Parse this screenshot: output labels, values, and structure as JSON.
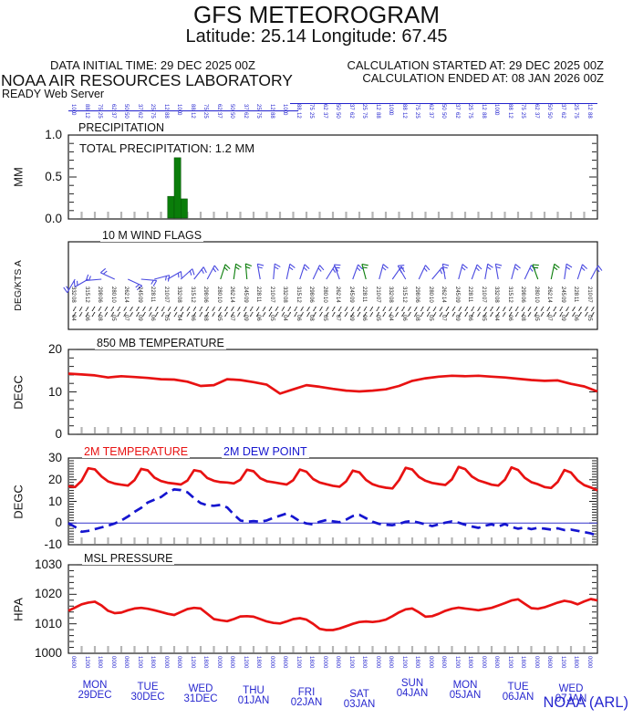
{
  "page": {
    "title": "GFS METEOROGRAM",
    "subtitle": "Latitude: 25.14 Longitude:  67.45",
    "credit": "NOAA (ARL)"
  },
  "header": {
    "data_initial_time": "DATA INITIAL TIME: 29 DEC 2025 00Z",
    "calculation_started": "CALCULATION STARTED AT: 29 DEC 2025 00Z",
    "calculation_ended": "CALCULATION ENDED AT: 08 JAN 2026 00Z",
    "organization": "NOAA AIR RESOURCES LABORATORY",
    "server": "READY Web Server"
  },
  "colors": {
    "red": "#e81212",
    "blue": "#1515cf",
    "barb_blue": "#4a4ae0",
    "green": "#0a7d0a",
    "label_blue": "#2828cf",
    "black": "#1a1a1a",
    "gray_tick": "#b5b5b5"
  },
  "x_axis": {
    "start": "29 DEC 2025 00Z",
    "end": "08 JAN 2026 00Z",
    "hours_total": 240,
    "minor_tick_hours": 6,
    "days": [
      {
        "name": "MON",
        "date": "29DEC"
      },
      {
        "name": "TUE",
        "date": "30DEC"
      },
      {
        "name": "WED",
        "date": "31DEC"
      },
      {
        "name": "THU",
        "date": "01JAN"
      },
      {
        "name": "FRI",
        "date": "02JAN"
      },
      {
        "name": "SAT",
        "date": "03JAN"
      },
      {
        "name": "SUN",
        "date": "04JAN"
      },
      {
        "name": "MON",
        "date": "05JAN"
      },
      {
        "name": "TUE",
        "date": "06JAN"
      },
      {
        "name": "WED",
        "date": "07JAN"
      }
    ]
  },
  "chart_data": [
    {
      "id": "precip",
      "type": "bar",
      "title": "PRECIPITATION",
      "ylabel": "MM",
      "ylim": [
        0,
        1
      ],
      "ytick_values": [
        0,
        0.5,
        1
      ],
      "yticks": [
        "0.0",
        "0.5",
        "1.0"
      ],
      "minor_step": 0.1,
      "annotation": "TOTAL PRECIPITATION:   1.2 MM",
      "total_precip_mm": 1.2,
      "bars": [
        {
          "start_hour": 45,
          "end_hour": 48,
          "mm": 0.27
        },
        {
          "start_hour": 48,
          "end_hour": 51,
          "mm": 0.73
        },
        {
          "start_hour": 51,
          "end_hour": 54,
          "mm": 0.24
        }
      ]
    },
    {
      "id": "wind",
      "type": "wind-barbs",
      "title": "10 M  WIND FLAGS",
      "ylabel": "DEG/KTS A",
      "barbs": {
        "angles": [
          210,
          240,
          265,
          295,
          115,
          95,
          75,
          60,
          48,
          38,
          28,
          18,
          8,
          355,
          350,
          5,
          12,
          18,
          25,
          32,
          340,
          20,
          345,
          15,
          35,
          330,
          25,
          40,
          350,
          15,
          20,
          10,
          350,
          15,
          25,
          340,
          12,
          8,
          18,
          28
        ],
        "colors": [
          "b",
          "b",
          "b",
          "b",
          "b",
          "b",
          "b",
          "b",
          "b",
          "b",
          "b",
          "g",
          "g",
          "g",
          "b",
          "b",
          "b",
          "b",
          "b",
          "b",
          "b",
          "b",
          "g",
          "b",
          "b",
          "b",
          "b",
          "b",
          "b",
          "b",
          "b",
          "b",
          "b",
          "b",
          "b",
          "g",
          "g",
          "b",
          "b",
          "b"
        ]
      }
    },
    {
      "id": "t850",
      "type": "line",
      "title": "850 MB  TEMPERATURE",
      "ylabel": "DEGC",
      "ylim": [
        0,
        20
      ],
      "ytick_values": [
        0,
        10,
        20
      ],
      "yticks": [
        "0",
        "10",
        "20"
      ],
      "minor_step": 2,
      "step_hours": 6,
      "series": [
        {
          "name": "850 MB TEMPERATURE",
          "color": "red",
          "style": "solid",
          "values": [
            14.3,
            14.1,
            13.9,
            13.4,
            13.7,
            13.5,
            13.3,
            13.0,
            12.9,
            12.4,
            11.4,
            11.6,
            13.0,
            12.8,
            12.3,
            11.7,
            9.6,
            10.6,
            11.6,
            11.2,
            10.7,
            10.3,
            10.1,
            10.3,
            10.6,
            11.4,
            12.6,
            13.2,
            13.6,
            13.8,
            13.7,
            13.8,
            13.6,
            13.4,
            13.1,
            12.8,
            12.6,
            12.7,
            11.9,
            11.3,
            10.1
          ]
        }
      ]
    },
    {
      "id": "t2m",
      "type": "line",
      "ylabel": "DEGC",
      "ylim": [
        -10,
        30
      ],
      "ytick_values": [
        -10,
        0,
        10,
        20,
        30
      ],
      "yticks": [
        "-10",
        "0",
        "10",
        "20",
        "30"
      ],
      "minor_step": 1.25,
      "step_hours": 3,
      "zero_line": true,
      "series": [
        {
          "name": "2M TEMPERATURE",
          "color": "red",
          "style": "solid",
          "values": [
            17.0,
            16.6,
            19.5,
            25.3,
            24.8,
            21.5,
            19.2,
            18.2,
            17.7,
            17.3,
            19.8,
            25.0,
            24.3,
            21.0,
            19.4,
            18.6,
            18.2,
            17.8,
            19.6,
            24.4,
            23.8,
            20.8,
            19.5,
            18.9,
            18.7,
            18.3,
            20.0,
            24.6,
            23.9,
            20.7,
            19.3,
            18.8,
            18.3,
            17.8,
            19.8,
            24.7,
            23.7,
            20.3,
            18.7,
            17.9,
            17.2,
            16.8,
            19.2,
            24.2,
            23.4,
            19.9,
            17.9,
            16.9,
            16.3,
            16.0,
            19.8,
            25.5,
            24.7,
            21.3,
            19.5,
            18.5,
            18.0,
            17.6,
            20.2,
            25.9,
            24.9,
            21.5,
            19.7,
            18.7,
            17.7,
            17.3,
            20.0,
            25.7,
            24.5,
            20.9,
            18.9,
            17.9,
            16.6,
            16.2,
            19.0,
            24.5,
            23.3,
            19.7,
            17.5,
            16.4,
            15.1
          ]
        },
        {
          "name": "2M   DEW POINT",
          "color": "blue",
          "style": "dashed",
          "values": [
            0.0,
            -1.8,
            -4.0,
            -3.6,
            -2.8,
            -2.0,
            -1.2,
            -0.2,
            1.2,
            3.0,
            5.2,
            7.0,
            9.5,
            10.8,
            12.0,
            14.2,
            15.5,
            15.2,
            14.2,
            11.5,
            9.2,
            8.2,
            8.0,
            8.4,
            7.2,
            4.0,
            1.2,
            0.6,
            0.9,
            0.6,
            1.2,
            2.4,
            3.4,
            4.4,
            2.8,
            0.8,
            -0.2,
            -0.6,
            0.6,
            1.4,
            0.8,
            0.4,
            1.6,
            3.2,
            3.8,
            2.2,
            0.6,
            -0.4,
            -0.8,
            -1.0,
            -0.4,
            0.6,
            0.9,
            0.2,
            -0.6,
            -1.4,
            -0.6,
            0.2,
            0.8,
            0.2,
            -0.8,
            -1.6,
            -2.2,
            -1.2,
            -0.6,
            -1.6,
            -0.5,
            -1.8,
            -2.6,
            -2.0,
            -2.8,
            -2.2,
            -2.6,
            -3.0,
            -2.4,
            -3.2,
            -3.0,
            -3.6,
            -4.2,
            -4.8,
            -5.8
          ]
        }
      ]
    },
    {
      "id": "mslp",
      "type": "line",
      "title": "MSL PRESSURE",
      "ylabel": "HPA",
      "ylim": [
        1000,
        1030
      ],
      "ytick_values": [
        1000,
        1010,
        1020,
        1030
      ],
      "yticks": [
        "1000",
        "1010",
        "1020",
        "1030"
      ],
      "minor_step": 2,
      "step_hours": 3,
      "series": [
        {
          "name": "MSL PRESSURE",
          "color": "red",
          "style": "solid",
          "values": [
            1014.4,
            1015.5,
            1016.6,
            1017.2,
            1017.5,
            1016.2,
            1014.4,
            1013.6,
            1013.8,
            1014.6,
            1015.2,
            1015.4,
            1015.1,
            1014.6,
            1014.0,
            1013.4,
            1013.0,
            1014.0,
            1015.0,
            1015.4,
            1015.2,
            1013.4,
            1011.6,
            1011.2,
            1010.9,
            1011.6,
            1012.5,
            1012.6,
            1012.4,
            1011.6,
            1010.8,
            1010.3,
            1010.1,
            1010.8,
            1011.6,
            1011.9,
            1011.4,
            1010.0,
            1008.3,
            1007.9,
            1007.9,
            1008.4,
            1009.2,
            1010.0,
            1010.6,
            1010.8,
            1010.6,
            1010.9,
            1011.4,
            1012.6,
            1013.9,
            1014.9,
            1015.2,
            1013.9,
            1012.4,
            1012.6,
            1013.4,
            1014.4,
            1015.1,
            1015.5,
            1015.2,
            1014.9,
            1014.6,
            1015.0,
            1015.4,
            1016.2,
            1017.0,
            1017.9,
            1018.3,
            1016.8,
            1015.3,
            1015.1,
            1015.6,
            1016.4,
            1017.2,
            1017.8,
            1017.4,
            1016.6,
            1017.6,
            1018.4,
            1017.9
          ]
        }
      ]
    }
  ],
  "decorative": {
    "note": "tiny rotated per-timestep value labels (illegible in source, approximated)",
    "micro_text_rows": [
      {
        "y": 114,
        "color": "blue",
        "pattern": [
          "100",
          "88",
          "75",
          "62",
          "50",
          "37",
          "25",
          "12"
        ]
      },
      {
        "y": 123,
        "color": "blue",
        "pattern": [
          "0",
          "12",
          "25",
          "37",
          "50",
          "62",
          "75",
          "88"
        ]
      },
      {
        "y": 314,
        "color": "black",
        "pattern": [
          "332",
          "315",
          "298",
          "280",
          "262",
          "245",
          "228",
          "210"
        ]
      },
      {
        "y": 325,
        "color": "black",
        "pattern": [
          "08",
          "12",
          "06",
          "10",
          "14",
          "09",
          "11",
          "07"
        ]
      },
      {
        "y": 345,
        "color": "black",
        "pattern": [
          "04",
          "06",
          "08",
          "05",
          "07",
          "09",
          "06",
          "05"
        ]
      },
      {
        "y": 719,
        "color": "blue",
        "pattern": [
          "0600",
          "1200",
          "1800",
          "0000"
        ]
      }
    ]
  }
}
